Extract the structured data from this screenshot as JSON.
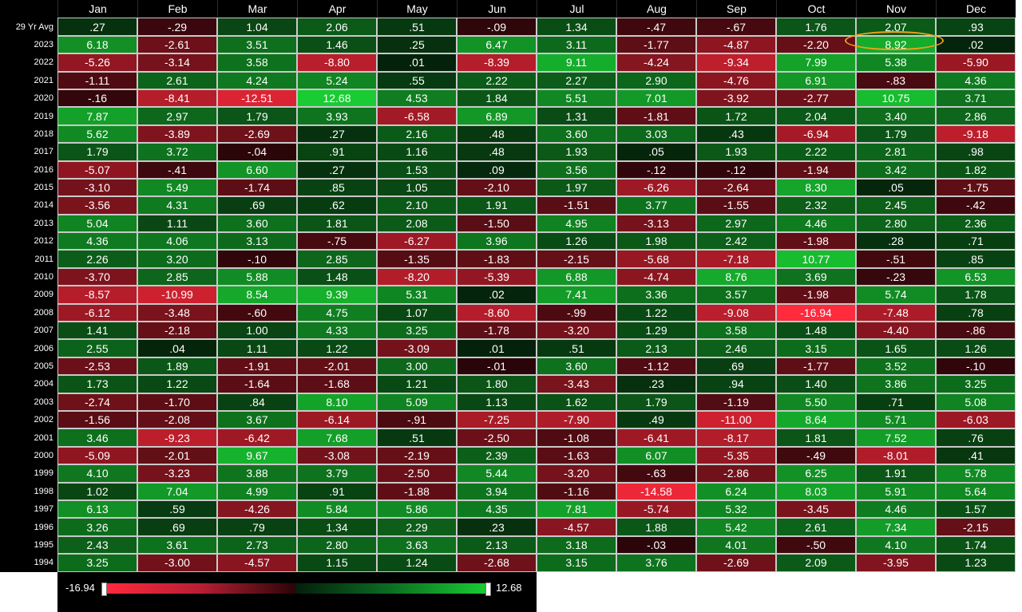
{
  "chart_data": {
    "type": "heatmap",
    "months": [
      "Jan",
      "Feb",
      "Mar",
      "Apr",
      "May",
      "Jun",
      "Jul",
      "Aug",
      "Sep",
      "Oct",
      "Nov",
      "Dec"
    ],
    "rows": [
      {
        "label": "29 Yr Avg",
        "values": [
          ".27",
          "-.29",
          "1.04",
          "2.06",
          ".51",
          "-.09",
          "1.34",
          "-.47",
          "-.67",
          "1.76",
          "2.07",
          ".93"
        ]
      },
      {
        "label": "2023",
        "values": [
          "6.18",
          "-2.61",
          "3.51",
          "1.46",
          ".25",
          "6.47",
          "3.11",
          "-1.77",
          "-4.87",
          "-2.20",
          "8.92",
          ".02"
        ]
      },
      {
        "label": "2022",
        "values": [
          "-5.26",
          "-3.14",
          "3.58",
          "-8.80",
          ".01",
          "-8.39",
          "9.11",
          "-4.24",
          "-9.34",
          "7.99",
          "5.38",
          "-5.90"
        ]
      },
      {
        "label": "2021",
        "values": [
          "-1.11",
          "2.61",
          "4.24",
          "5.24",
          ".55",
          "2.22",
          "2.27",
          "2.90",
          "-4.76",
          "6.91",
          "-.83",
          "4.36"
        ]
      },
      {
        "label": "2020",
        "values": [
          "-.16",
          "-8.41",
          "-12.51",
          "12.68",
          "4.53",
          "1.84",
          "5.51",
          "7.01",
          "-3.92",
          "-2.77",
          "10.75",
          "3.71"
        ]
      },
      {
        "label": "2019",
        "values": [
          "7.87",
          "2.97",
          "1.79",
          "3.93",
          "-6.58",
          "6.89",
          "1.31",
          "-1.81",
          "1.72",
          "2.04",
          "3.40",
          "2.86"
        ]
      },
      {
        "label": "2018",
        "values": [
          "5.62",
          "-3.89",
          "-2.69",
          ".27",
          "2.16",
          ".48",
          "3.60",
          "3.03",
          ".43",
          "-6.94",
          "1.79",
          "-9.18"
        ]
      },
      {
        "label": "2017",
        "values": [
          "1.79",
          "3.72",
          "-.04",
          ".91",
          "1.16",
          ".48",
          "1.93",
          ".05",
          "1.93",
          "2.22",
          "2.81",
          ".98"
        ]
      },
      {
        "label": "2016",
        "values": [
          "-5.07",
          "-.41",
          "6.60",
          ".27",
          "1.53",
          ".09",
          "3.56",
          "-.12",
          "-.12",
          "-1.94",
          "3.42",
          "1.82"
        ]
      },
      {
        "label": "2015",
        "values": [
          "-3.10",
          "5.49",
          "-1.74",
          ".85",
          "1.05",
          "-2.10",
          "1.97",
          "-6.26",
          "-2.64",
          "8.30",
          ".05",
          "-1.75"
        ]
      },
      {
        "label": "2014",
        "values": [
          "-3.56",
          "4.31",
          ".69",
          ".62",
          "2.10",
          "1.91",
          "-1.51",
          "3.77",
          "-1.55",
          "2.32",
          "2.45",
          "-.42"
        ]
      },
      {
        "label": "2013",
        "values": [
          "5.04",
          "1.11",
          "3.60",
          "1.81",
          "2.08",
          "-1.50",
          "4.95",
          "-3.13",
          "2.97",
          "4.46",
          "2.80",
          "2.36"
        ]
      },
      {
        "label": "2012",
        "values": [
          "4.36",
          "4.06",
          "3.13",
          "-.75",
          "-6.27",
          "3.96",
          "1.26",
          "1.98",
          "2.42",
          "-1.98",
          ".28",
          ".71"
        ]
      },
      {
        "label": "2011",
        "values": [
          "2.26",
          "3.20",
          "-.10",
          "2.85",
          "-1.35",
          "-1.83",
          "-2.15",
          "-5.68",
          "-7.18",
          "10.77",
          "-.51",
          ".85"
        ]
      },
      {
        "label": "2010",
        "values": [
          "-3.70",
          "2.85",
          "5.88",
          "1.48",
          "-8.20",
          "-5.39",
          "6.88",
          "-4.74",
          "8.76",
          "3.69",
          "-.23",
          "6.53"
        ]
      },
      {
        "label": "2009",
        "values": [
          "-8.57",
          "-10.99",
          "8.54",
          "9.39",
          "5.31",
          ".02",
          "7.41",
          "3.36",
          "3.57",
          "-1.98",
          "5.74",
          "1.78"
        ]
      },
      {
        "label": "2008",
        "values": [
          "-6.12",
          "-3.48",
          "-.60",
          "4.75",
          "1.07",
          "-8.60",
          "-.99",
          "1.22",
          "-9.08",
          "-16.94",
          "-7.48",
          ".78"
        ]
      },
      {
        "label": "2007",
        "values": [
          "1.41",
          "-2.18",
          "1.00",
          "4.33",
          "3.25",
          "-1.78",
          "-3.20",
          "1.29",
          "3.58",
          "1.48",
          "-4.40",
          "-.86"
        ]
      },
      {
        "label": "2006",
        "values": [
          "2.55",
          ".04",
          "1.11",
          "1.22",
          "-3.09",
          ".01",
          ".51",
          "2.13",
          "2.46",
          "3.15",
          "1.65",
          "1.26"
        ]
      },
      {
        "label": "2005",
        "values": [
          "-2.53",
          "1.89",
          "-1.91",
          "-2.01",
          "3.00",
          "-.01",
          "3.60",
          "-1.12",
          ".69",
          "-1.77",
          "3.52",
          "-.10"
        ]
      },
      {
        "label": "2004",
        "values": [
          "1.73",
          "1.22",
          "-1.64",
          "-1.68",
          "1.21",
          "1.80",
          "-3.43",
          ".23",
          ".94",
          "1.40",
          "3.86",
          "3.25"
        ]
      },
      {
        "label": "2003",
        "values": [
          "-2.74",
          "-1.70",
          ".84",
          "8.10",
          "5.09",
          "1.13",
          "1.62",
          "1.79",
          "-1.19",
          "5.50",
          ".71",
          "5.08"
        ]
      },
      {
        "label": "2002",
        "values": [
          "-1.56",
          "-2.08",
          "3.67",
          "-6.14",
          "-.91",
          "-7.25",
          "-7.90",
          ".49",
          "-11.00",
          "8.64",
          "5.71",
          "-6.03"
        ]
      },
      {
        "label": "2001",
        "values": [
          "3.46",
          "-9.23",
          "-6.42",
          "7.68",
          ".51",
          "-2.50",
          "-1.08",
          "-6.41",
          "-8.17",
          "1.81",
          "7.52",
          ".76"
        ]
      },
      {
        "label": "2000",
        "values": [
          "-5.09",
          "-2.01",
          "9.67",
          "-3.08",
          "-2.19",
          "2.39",
          "-1.63",
          "6.07",
          "-5.35",
          "-.49",
          "-8.01",
          ".41"
        ]
      },
      {
        "label": "1999",
        "values": [
          "4.10",
          "-3.23",
          "3.88",
          "3.79",
          "-2.50",
          "5.44",
          "-3.20",
          "-.63",
          "-2.86",
          "6.25",
          "1.91",
          "5.78"
        ]
      },
      {
        "label": "1998",
        "values": [
          "1.02",
          "7.04",
          "4.99",
          ".91",
          "-1.88",
          "3.94",
          "-1.16",
          "-14.58",
          "6.24",
          "8.03",
          "5.91",
          "5.64"
        ]
      },
      {
        "label": "1997",
        "values": [
          "6.13",
          ".59",
          "-4.26",
          "5.84",
          "5.86",
          "4.35",
          "7.81",
          "-5.74",
          "5.32",
          "-3.45",
          "4.46",
          "1.57"
        ]
      },
      {
        "label": "1996",
        "values": [
          "3.26",
          ".69",
          ".79",
          "1.34",
          "2.29",
          ".23",
          "-4.57",
          "1.88",
          "5.42",
          "2.61",
          "7.34",
          "-2.15"
        ]
      },
      {
        "label": "1995",
        "values": [
          "2.43",
          "3.61",
          "2.73",
          "2.80",
          "3.63",
          "2.13",
          "3.18",
          "-.03",
          "4.01",
          "-.50",
          "4.10",
          "1.74"
        ]
      },
      {
        "label": "1994",
        "values": [
          "3.25",
          "-3.00",
          "-4.57",
          "1.15",
          "1.24",
          "-2.68",
          "3.15",
          "3.76",
          "-2.69",
          "2.09",
          "-3.95",
          "1.23"
        ]
      }
    ],
    "color_scale": {
      "min_label": "-16.94",
      "max_label": "12.68",
      "min": -16.94,
      "max": 12.68,
      "negative_color": "#ff2a3c",
      "positive_color": "#19cc33"
    },
    "highlight": {
      "row": "2023",
      "month": "Nov",
      "color": "#f0a01c"
    }
  }
}
